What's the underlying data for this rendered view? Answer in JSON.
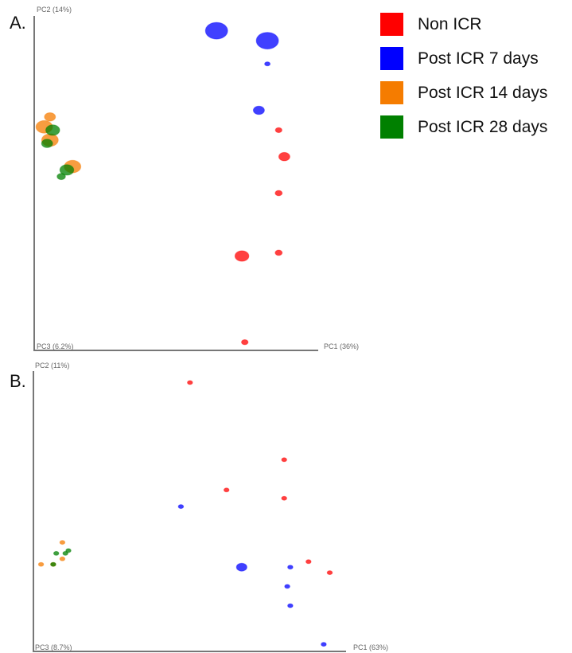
{
  "colors": {
    "Non ICR": "#ff0000",
    "Post ICR 7 days": "#0000ff",
    "Post ICR 14 days": "#f57c00",
    "Post ICR 28 days": "#008000"
  },
  "legend": {
    "items": [
      {
        "label": "Non ICR",
        "color": "#ff0000"
      },
      {
        "label": "Post ICR 7 days",
        "color": "#0000ff"
      },
      {
        "label": "Post ICR 14 days",
        "color": "#f57c00"
      },
      {
        "label": "Post ICR 28 days",
        "color": "#008000"
      }
    ]
  },
  "panels": [
    {
      "letter": "A.",
      "xlabel": "PC1 (36%)",
      "ylabel": "PC2 (14%)",
      "zlabel": "PC3 (6.2%)"
    },
    {
      "letter": "B.",
      "xlabel": "PC1 (63%)",
      "ylabel": "PC2 (11%)",
      "zlabel": "PC3 (8.7%)"
    }
  ],
  "chart_data": [
    {
      "type": "scatter",
      "title": "",
      "xlabel": "PC1 (36%)",
      "ylabel": "PC2 (14%)",
      "zlabel": "PC3 (6.2%)",
      "xlim": [
        0,
        1
      ],
      "ylim": [
        0,
        1
      ],
      "legend": "top-right",
      "series": [
        {
          "name": "Non ICR",
          "points": [
            {
              "x": 0.86,
              "y": 0.66,
              "size": 0.012
            },
            {
              "x": 0.88,
              "y": 0.58,
              "size": 0.02
            },
            {
              "x": 0.86,
              "y": 0.47,
              "size": 0.013
            },
            {
              "x": 0.86,
              "y": 0.29,
              "size": 0.013
            },
            {
              "x": 0.73,
              "y": 0.28,
              "size": 0.025
            },
            {
              "x": 0.74,
              "y": 0.02,
              "size": 0.012
            }
          ]
        },
        {
          "name": "Post ICR 7 days",
          "points": [
            {
              "x": 0.64,
              "y": 0.96,
              "size": 0.04
            },
            {
              "x": 0.82,
              "y": 0.93,
              "size": 0.04
            },
            {
              "x": 0.82,
              "y": 0.86,
              "size": 0.01
            },
            {
              "x": 0.79,
              "y": 0.72,
              "size": 0.02
            }
          ]
        },
        {
          "name": "Post ICR 14 days",
          "points": [
            {
              "x": 0.05,
              "y": 0.7,
              "size": 0.02
            },
            {
              "x": 0.03,
              "y": 0.67,
              "size": 0.03
            },
            {
              "x": 0.05,
              "y": 0.63,
              "size": 0.03
            },
            {
              "x": 0.13,
              "y": 0.55,
              "size": 0.03
            }
          ]
        },
        {
          "name": "Post ICR 28 days",
          "points": [
            {
              "x": 0.06,
              "y": 0.66,
              "size": 0.025
            },
            {
              "x": 0.04,
              "y": 0.62,
              "size": 0.02
            },
            {
              "x": 0.11,
              "y": 0.54,
              "size": 0.025
            },
            {
              "x": 0.09,
              "y": 0.52,
              "size": 0.015
            }
          ]
        }
      ]
    },
    {
      "type": "scatter",
      "title": "",
      "xlabel": "PC1 (63%)",
      "ylabel": "PC2 (11%)",
      "zlabel": "PC3 (8.7%)",
      "xlim": [
        0,
        1
      ],
      "ylim": [
        0,
        1
      ],
      "legend": "top-right",
      "series": [
        {
          "name": "Non ICR",
          "points": [
            {
              "x": 0.51,
              "y": 0.97,
              "size": 0.01
            },
            {
              "x": 0.82,
              "y": 0.69,
              "size": 0.01
            },
            {
              "x": 0.63,
              "y": 0.58,
              "size": 0.01
            },
            {
              "x": 0.82,
              "y": 0.55,
              "size": 0.01
            },
            {
              "x": 0.9,
              "y": 0.32,
              "size": 0.01
            },
            {
              "x": 0.97,
              "y": 0.28,
              "size": 0.01
            }
          ]
        },
        {
          "name": "Post ICR 7 days",
          "points": [
            {
              "x": 0.48,
              "y": 0.52,
              "size": 0.01
            },
            {
              "x": 0.68,
              "y": 0.3,
              "size": 0.02
            },
            {
              "x": 0.84,
              "y": 0.3,
              "size": 0.01
            },
            {
              "x": 0.83,
              "y": 0.23,
              "size": 0.01
            },
            {
              "x": 0.84,
              "y": 0.16,
              "size": 0.01
            },
            {
              "x": 0.95,
              "y": 0.02,
              "size": 0.01
            }
          ]
        },
        {
          "name": "Post ICR 14 days",
          "points": [
            {
              "x": 0.09,
              "y": 0.39,
              "size": 0.01
            },
            {
              "x": 0.09,
              "y": 0.33,
              "size": 0.01
            },
            {
              "x": 0.06,
              "y": 0.31,
              "size": 0.01
            },
            {
              "x": 0.02,
              "y": 0.31,
              "size": 0.01
            }
          ]
        },
        {
          "name": "Post ICR 28 days",
          "points": [
            {
              "x": 0.07,
              "y": 0.35,
              "size": 0.01
            },
            {
              "x": 0.1,
              "y": 0.35,
              "size": 0.01
            },
            {
              "x": 0.11,
              "y": 0.36,
              "size": 0.01
            },
            {
              "x": 0.06,
              "y": 0.31,
              "size": 0.01
            }
          ]
        }
      ]
    }
  ]
}
